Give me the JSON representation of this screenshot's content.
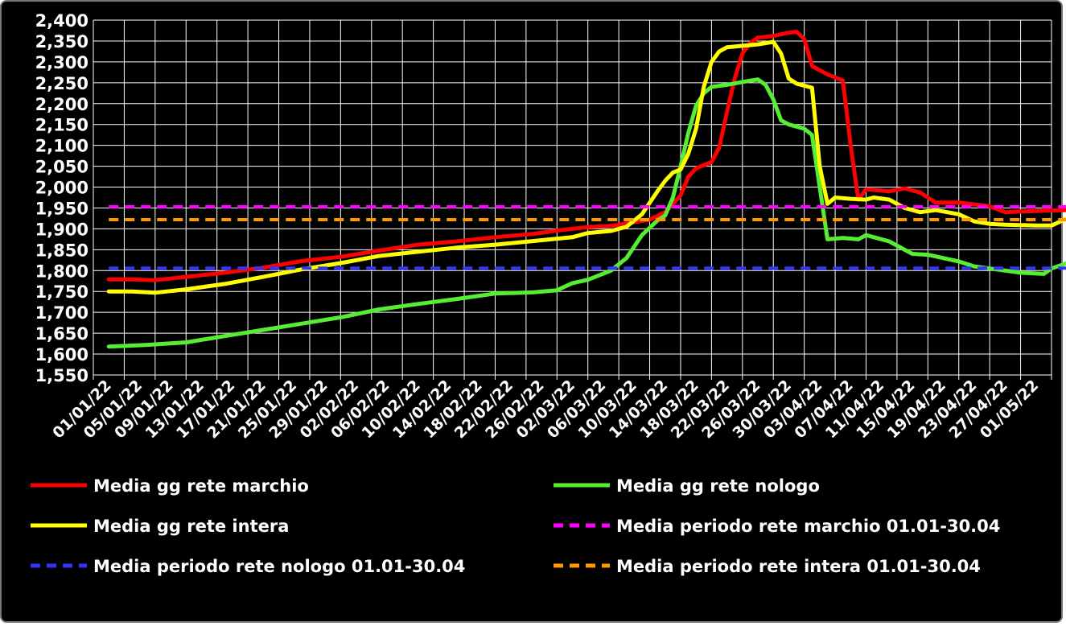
{
  "chart_data": {
    "type": "line",
    "ylim": [
      1550,
      2400
    ],
    "ytick_step": 50,
    "yticks": [
      "1,550",
      "1,600",
      "1,650",
      "1,700",
      "1,750",
      "1,800",
      "1,850",
      "1,900",
      "1,950",
      "2,000",
      "2,050",
      "2,100",
      "2,150",
      "2,200",
      "2,250",
      "2,300",
      "2,350",
      "2,400"
    ],
    "xticks": [
      "01/01/22",
      "05/01/22",
      "09/01/22",
      "13/01/22",
      "17/01/22",
      "21/01/22",
      "25/01/22",
      "29/01/22",
      "02/02/22",
      "06/02/22",
      "10/02/22",
      "14/02/22",
      "18/02/22",
      "22/02/22",
      "26/02/22",
      "02/03/22",
      "06/03/22",
      "10/03/22",
      "14/03/22",
      "18/03/22",
      "22/03/22",
      "26/03/22",
      "30/03/22",
      "03/04/22",
      "07/04/22",
      "11/04/22",
      "15/04/22",
      "19/04/22",
      "23/04/22",
      "27/04/22",
      "01/05/22"
    ],
    "grid": true,
    "legend_position": "bottom",
    "series": [
      {
        "name": "Media gg rete marchio",
        "color": "#ff0000",
        "style": "solid",
        "points": [
          [
            0,
            1779
          ],
          [
            3,
            1779
          ],
          [
            6,
            1777
          ],
          [
            10,
            1785
          ],
          [
            15,
            1795
          ],
          [
            20,
            1807
          ],
          [
            25,
            1823
          ],
          [
            30,
            1833
          ],
          [
            35,
            1848
          ],
          [
            40,
            1862
          ],
          [
            45,
            1870
          ],
          [
            50,
            1880
          ],
          [
            55,
            1888
          ],
          [
            58,
            1896
          ],
          [
            60,
            1900
          ],
          [
            62,
            1904
          ],
          [
            65,
            1907
          ],
          [
            70,
            1922
          ],
          [
            72,
            1940
          ],
          [
            74,
            1980
          ],
          [
            75,
            2025
          ],
          [
            76,
            2045
          ],
          [
            78,
            2060
          ],
          [
            79,
            2095
          ],
          [
            80,
            2180
          ],
          [
            81,
            2260
          ],
          [
            82,
            2320
          ],
          [
            83,
            2345
          ],
          [
            84,
            2358
          ],
          [
            86,
            2362
          ],
          [
            88,
            2370
          ],
          [
            89,
            2372
          ],
          [
            90,
            2355
          ],
          [
            91,
            2290
          ],
          [
            93,
            2270
          ],
          [
            95,
            2255
          ],
          [
            96,
            2100
          ],
          [
            97,
            1970
          ],
          [
            98,
            1995
          ],
          [
            101,
            1990
          ],
          [
            103,
            1997
          ],
          [
            105,
            1987
          ],
          [
            107,
            1963
          ],
          [
            110,
            1963
          ],
          [
            114,
            1954
          ],
          [
            116,
            1940
          ],
          [
            120,
            1943
          ],
          [
            124,
            1945
          ],
          [
            126,
            1953
          ],
          [
            128,
            1960
          ],
          [
            130,
            1953
          ],
          [
            132,
            1965
          ],
          [
            134,
            1972
          ],
          [
            135,
            1980
          ]
        ]
      },
      {
        "name": "Media gg rete nologo",
        "color": "#55ee33",
        "style": "solid",
        "points": [
          [
            0,
            1618
          ],
          [
            5,
            1622
          ],
          [
            10,
            1628
          ],
          [
            15,
            1643
          ],
          [
            20,
            1658
          ],
          [
            25,
            1673
          ],
          [
            30,
            1688
          ],
          [
            35,
            1707
          ],
          [
            40,
            1720
          ],
          [
            45,
            1732
          ],
          [
            50,
            1745
          ],
          [
            55,
            1748
          ],
          [
            58,
            1753
          ],
          [
            60,
            1770
          ],
          [
            62,
            1778
          ],
          [
            65,
            1800
          ],
          [
            67,
            1830
          ],
          [
            69,
            1885
          ],
          [
            71,
            1920
          ],
          [
            72,
            1932
          ],
          [
            73,
            1975
          ],
          [
            74,
            2050
          ],
          [
            75,
            2130
          ],
          [
            76,
            2195
          ],
          [
            77,
            2225
          ],
          [
            78,
            2240
          ],
          [
            80,
            2245
          ],
          [
            83,
            2255
          ],
          [
            84,
            2258
          ],
          [
            85,
            2245
          ],
          [
            86,
            2210
          ],
          [
            87,
            2160
          ],
          [
            88,
            2150
          ],
          [
            90,
            2140
          ],
          [
            91,
            2125
          ],
          [
            92,
            2000
          ],
          [
            93,
            1875
          ],
          [
            95,
            1878
          ],
          [
            97,
            1875
          ],
          [
            98,
            1885
          ],
          [
            101,
            1870
          ],
          [
            103,
            1850
          ],
          [
            104,
            1840
          ],
          [
            106,
            1838
          ],
          [
            110,
            1822
          ],
          [
            112,
            1810
          ],
          [
            114,
            1805
          ],
          [
            118,
            1795
          ],
          [
            121,
            1792
          ],
          [
            122,
            1805
          ],
          [
            124,
            1818
          ],
          [
            126,
            1820
          ],
          [
            128,
            1812
          ],
          [
            130,
            1825
          ],
          [
            132,
            1828
          ],
          [
            135,
            1836
          ]
        ]
      },
      {
        "name": "Media gg rete intera",
        "color": "#ffff00",
        "style": "solid",
        "points": [
          [
            0,
            1750
          ],
          [
            3,
            1750
          ],
          [
            6,
            1747
          ],
          [
            10,
            1755
          ],
          [
            15,
            1768
          ],
          [
            20,
            1785
          ],
          [
            25,
            1803
          ],
          [
            30,
            1818
          ],
          [
            35,
            1835
          ],
          [
            40,
            1845
          ],
          [
            45,
            1855
          ],
          [
            50,
            1862
          ],
          [
            55,
            1871
          ],
          [
            60,
            1880
          ],
          [
            62,
            1890
          ],
          [
            65,
            1895
          ],
          [
            67,
            1905
          ],
          [
            69,
            1935
          ],
          [
            71,
            1990
          ],
          [
            72,
            2015
          ],
          [
            73,
            2035
          ],
          [
            74,
            2042
          ],
          [
            75,
            2080
          ],
          [
            76,
            2140
          ],
          [
            77,
            2240
          ],
          [
            78,
            2300
          ],
          [
            79,
            2325
          ],
          [
            80,
            2335
          ],
          [
            84,
            2342
          ],
          [
            86,
            2348
          ],
          [
            87,
            2320
          ],
          [
            88,
            2260
          ],
          [
            89,
            2248
          ],
          [
            91,
            2238
          ],
          [
            92,
            2050
          ],
          [
            93,
            1960
          ],
          [
            94,
            1975
          ],
          [
            96,
            1972
          ],
          [
            98,
            1970
          ],
          [
            99,
            1975
          ],
          [
            101,
            1970
          ],
          [
            103,
            1950
          ],
          [
            105,
            1940
          ],
          [
            107,
            1945
          ],
          [
            110,
            1935
          ],
          [
            112,
            1918
          ],
          [
            114,
            1912
          ],
          [
            116,
            1910
          ],
          [
            120,
            1908
          ],
          [
            122,
            1908
          ],
          [
            124,
            1925
          ],
          [
            126,
            1933
          ],
          [
            128,
            1930
          ],
          [
            129,
            1925
          ],
          [
            131,
            1935
          ],
          [
            133,
            1945
          ],
          [
            135,
            1955
          ]
        ]
      },
      {
        "name": "Media periodo rete marchio 01.01-30.04",
        "color": "#ff00ff",
        "style": "dashed",
        "points": [
          [
            0,
            1953
          ],
          [
            135,
            1953
          ]
        ]
      },
      {
        "name": "Media periodo rete nologo 01.01-30.04",
        "color": "#3333ff",
        "style": "dashed",
        "points": [
          [
            0,
            1806
          ],
          [
            135,
            1806
          ]
        ]
      },
      {
        "name": "Media periodo rete intera 01.01-30.04",
        "color": "#ff9900",
        "style": "dashed",
        "points": [
          [
            0,
            1922
          ],
          [
            135,
            1922
          ]
        ]
      }
    ]
  }
}
